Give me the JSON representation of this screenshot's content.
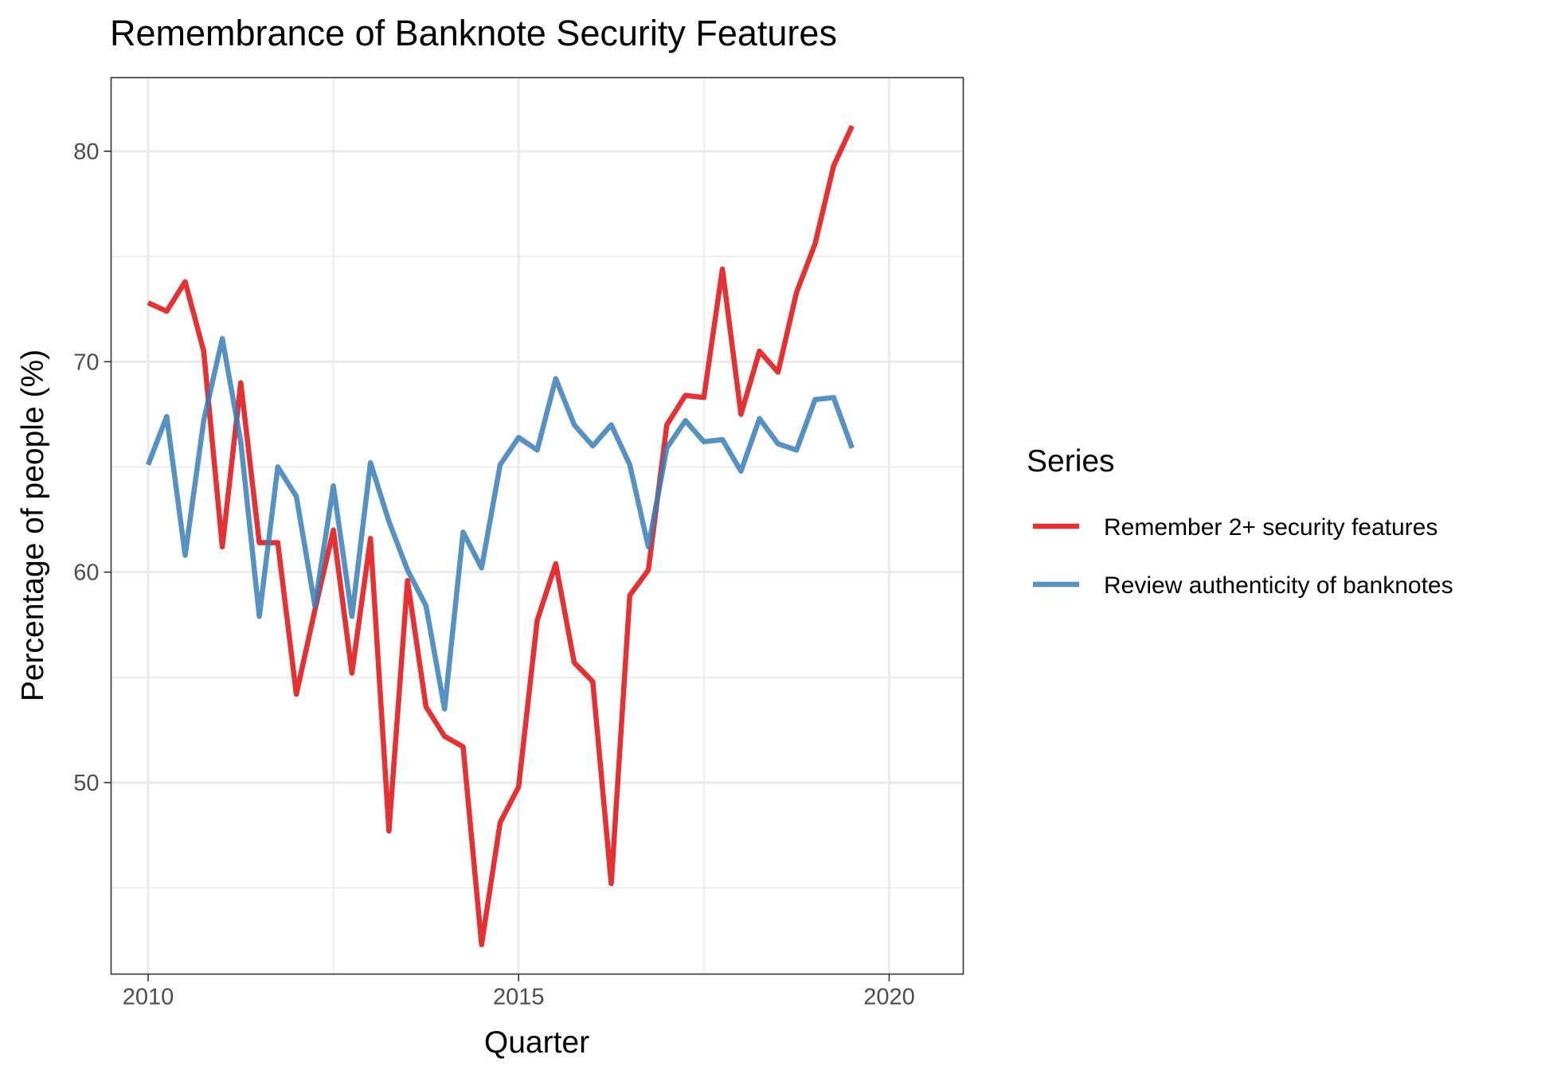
{
  "chart_data": {
    "type": "line",
    "title": "Remembrance of Banknote Security Features",
    "xlabel": "Quarter",
    "ylabel": "Percentage of people (%)",
    "xlim": [
      2009.5,
      2021.0
    ],
    "ylim": [
      40.9,
      83.5
    ],
    "x_ticks": [
      2010,
      2015,
      2020
    ],
    "x_minor_ticks": [
      2012.5,
      2017.5
    ],
    "y_ticks": [
      50,
      60,
      70,
      80
    ],
    "y_minor_ticks": [
      45,
      55,
      65,
      75
    ],
    "grid": true,
    "legend": {
      "title": "Series",
      "position": "right"
    },
    "x": [
      2010.0,
      2010.25,
      2010.5,
      2010.75,
      2011.0,
      2011.25,
      2011.5,
      2011.75,
      2012.0,
      2012.25,
      2012.5,
      2012.75,
      2013.0,
      2013.25,
      2013.5,
      2013.75,
      2014.0,
      2014.25,
      2014.5,
      2014.75,
      2015.0,
      2015.25,
      2015.5,
      2015.75,
      2016.0,
      2016.25,
      2016.5,
      2016.75,
      2017.0,
      2017.25,
      2017.5,
      2017.75,
      2018.0,
      2018.25,
      2018.5,
      2018.75,
      2019.0,
      2019.25,
      2019.5
    ],
    "series": [
      {
        "name": "Remember 2+ security features",
        "color": "#E41A1C",
        "values": [
          72.8,
          72.4,
          73.8,
          70.5,
          61.2,
          69.0,
          61.4,
          61.4,
          54.2,
          58.2,
          62.0,
          55.2,
          61.6,
          47.7,
          59.6,
          53.6,
          52.2,
          51.7,
          42.3,
          48.1,
          49.8,
          57.7,
          60.4,
          55.7,
          54.8,
          45.2,
          58.9,
          60.1,
          67.0,
          68.4,
          68.3,
          74.4,
          67.5,
          70.5,
          69.5,
          73.3,
          75.6,
          79.3,
          81.2
        ]
      },
      {
        "name": "Review authenticity of banknotes",
        "color": "#377EB8",
        "values": [
          65.1,
          67.4,
          60.8,
          67.2,
          71.1,
          66.2,
          57.9,
          65.0,
          63.6,
          58.4,
          64.1,
          57.9,
          65.2,
          62.4,
          60.1,
          58.4,
          53.5,
          61.9,
          60.2,
          65.1,
          66.4,
          65.8,
          69.2,
          67.0,
          66.0,
          67.0,
          65.1,
          61.2,
          65.9,
          67.2,
          66.2,
          66.3,
          64.8,
          67.3,
          66.1,
          65.8,
          68.2,
          68.3,
          65.9
        ]
      }
    ]
  }
}
